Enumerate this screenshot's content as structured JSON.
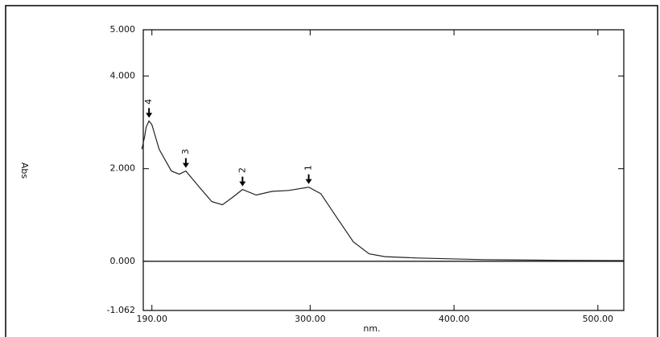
{
  "chart_data": {
    "type": "line",
    "xlabel": "nm.",
    "ylabel": "Abs",
    "x": [
      183,
      185,
      186,
      188,
      190,
      195,
      203.5,
      209,
      213.6,
      223,
      231.6,
      239,
      245.6,
      253,
      262.5,
      273.7,
      285,
      299,
      307.4,
      318.6,
      330,
      341,
      352,
      375,
      420,
      476,
      518
    ],
    "series": [
      {
        "name": "Abs",
        "color": "#222222",
        "values": [
          2.42,
          2.7,
          2.9,
          3.03,
          2.95,
          2.42,
          1.95,
          1.88,
          1.95,
          1.6,
          1.29,
          1.22,
          1.37,
          1.55,
          1.43,
          1.51,
          1.53,
          1.6,
          1.46,
          0.94,
          0.42,
          0.16,
          0.1,
          0.07,
          0.035,
          0.02,
          0.015
        ]
      }
    ],
    "peaks": [
      {
        "label": "1",
        "x": 299,
        "y": 1.6
      },
      {
        "label": "2",
        "x": 253,
        "y": 1.55
      },
      {
        "label": "3",
        "x": 213.6,
        "y": 1.95
      },
      {
        "label": "4",
        "x": 188,
        "y": 3.03
      }
    ],
    "xlim": [
      184,
      518
    ],
    "ylim": [
      -1.062,
      5
    ],
    "xticks": [
      {
        "value": 190,
        "label": "190.00"
      },
      {
        "value": 300,
        "label": "300.00"
      },
      {
        "value": 400,
        "label": "400.00"
      },
      {
        "value": 500,
        "label": "500.00"
      }
    ],
    "yticks": [
      {
        "value": -1.062,
        "label": "-1.062"
      },
      {
        "value": 0,
        "label": "0.000"
      },
      {
        "value": 2,
        "label": "2.000"
      },
      {
        "value": 4,
        "label": "4.000"
      },
      {
        "value": 5,
        "label": "5.000"
      }
    ],
    "zero_line": true
  }
}
